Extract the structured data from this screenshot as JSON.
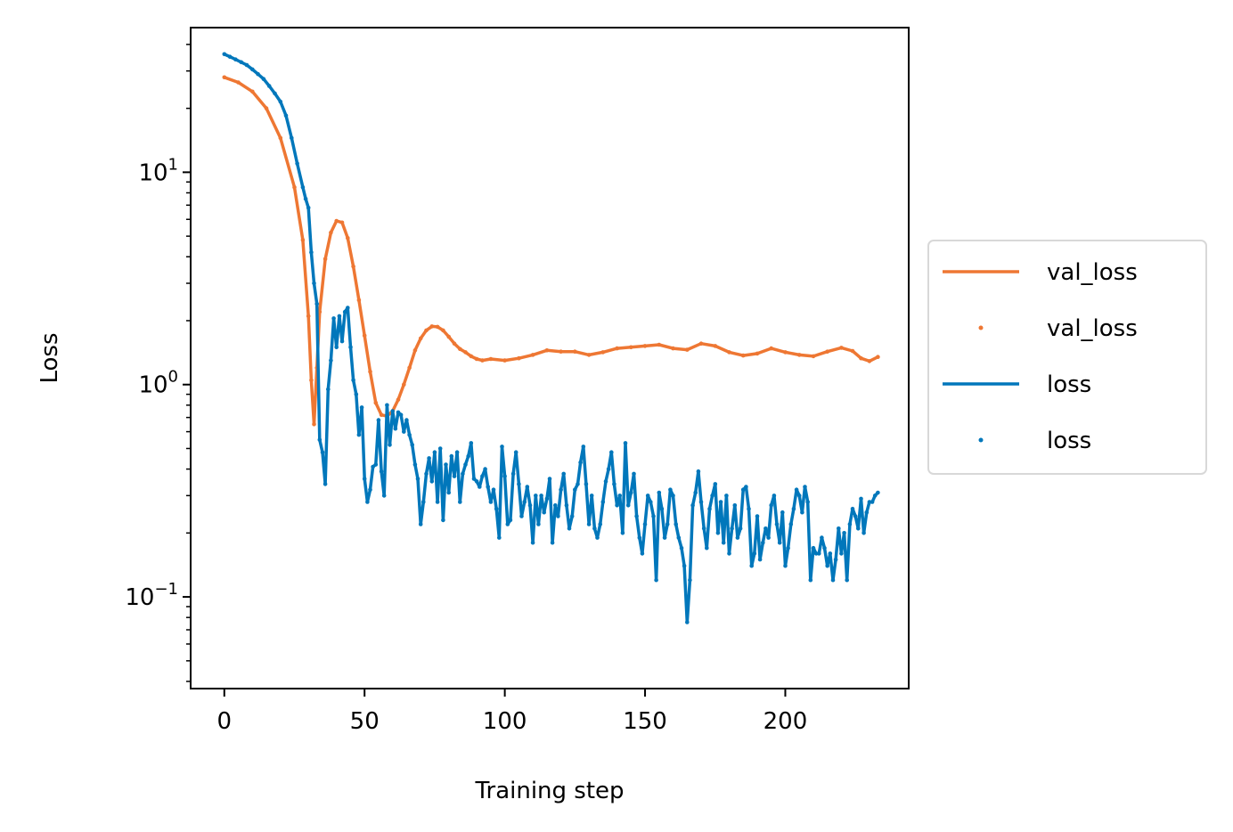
{
  "chart_data": {
    "type": "line",
    "xlabel": "Training step",
    "ylabel": "Loss",
    "xlim": [
      -12,
      244
    ],
    "ylim": [
      0.037,
      48
    ],
    "y_scale": "log",
    "grid": false,
    "legend_placement": "right, outside plot",
    "x_ticks": [
      0,
      50,
      100,
      150,
      200
    ],
    "x_tick_labels": [
      "0",
      "50",
      "100",
      "150",
      "200"
    ],
    "y_ticks": [
      0.1,
      1,
      10
    ],
    "y_tick_labels": [
      {
        "base": "10",
        "exp": "−1"
      },
      {
        "base": "10",
        "exp": "0"
      },
      {
        "base": "10",
        "exp": "1"
      }
    ],
    "legend": [
      {
        "label": "val_loss",
        "style": "line",
        "color": "#ee7733"
      },
      {
        "label": "val_loss",
        "style": "marker",
        "color": "#ee7733"
      },
      {
        "label": "loss",
        "style": "line",
        "color": "#0077bb"
      },
      {
        "label": "loss",
        "style": "marker",
        "color": "#0077bb"
      }
    ],
    "series": [
      {
        "name": "val_loss",
        "color": "#ee7733",
        "points": [
          [
            0,
            28
          ],
          [
            5,
            26.5
          ],
          [
            10,
            24
          ],
          [
            15,
            20
          ],
          [
            20,
            14.5
          ],
          [
            25,
            8.5
          ],
          [
            28,
            4.8
          ],
          [
            30,
            2.1
          ],
          [
            31,
            1.05
          ],
          [
            32,
            0.65
          ],
          [
            33,
            1.2
          ],
          [
            34,
            2.2
          ],
          [
            36,
            3.9
          ],
          [
            38,
            5.2
          ],
          [
            40,
            5.9
          ],
          [
            42,
            5.8
          ],
          [
            44,
            4.9
          ],
          [
            46,
            3.6
          ],
          [
            48,
            2.5
          ],
          [
            50,
            1.7
          ],
          [
            52,
            1.15
          ],
          [
            54,
            0.82
          ],
          [
            56,
            0.72
          ],
          [
            58,
            0.71
          ],
          [
            60,
            0.75
          ],
          [
            62,
            0.85
          ],
          [
            64,
            1.0
          ],
          [
            66,
            1.2
          ],
          [
            68,
            1.45
          ],
          [
            70,
            1.65
          ],
          [
            72,
            1.8
          ],
          [
            74,
            1.88
          ],
          [
            76,
            1.87
          ],
          [
            78,
            1.8
          ],
          [
            80,
            1.68
          ],
          [
            82,
            1.56
          ],
          [
            84,
            1.47
          ],
          [
            86,
            1.42
          ],
          [
            88,
            1.36
          ],
          [
            90,
            1.32
          ],
          [
            92,
            1.3
          ],
          [
            95,
            1.32
          ],
          [
            100,
            1.3
          ],
          [
            105,
            1.33
          ],
          [
            110,
            1.38
          ],
          [
            115,
            1.45
          ],
          [
            120,
            1.43
          ],
          [
            125,
            1.43
          ],
          [
            130,
            1.38
          ],
          [
            135,
            1.42
          ],
          [
            140,
            1.48
          ],
          [
            145,
            1.5
          ],
          [
            150,
            1.52
          ],
          [
            155,
            1.54
          ],
          [
            160,
            1.48
          ],
          [
            165,
            1.46
          ],
          [
            170,
            1.56
          ],
          [
            175,
            1.52
          ],
          [
            180,
            1.42
          ],
          [
            185,
            1.37
          ],
          [
            190,
            1.4
          ],
          [
            195,
            1.48
          ],
          [
            200,
            1.42
          ],
          [
            205,
            1.38
          ],
          [
            210,
            1.36
          ],
          [
            215,
            1.43
          ],
          [
            220,
            1.49
          ],
          [
            224,
            1.44
          ],
          [
            227,
            1.33
          ],
          [
            230,
            1.29
          ],
          [
            233,
            1.35
          ]
        ]
      },
      {
        "name": "loss",
        "color": "#0077bb",
        "points": [
          [
            0,
            36
          ],
          [
            2,
            35
          ],
          [
            4,
            34
          ],
          [
            6,
            33
          ],
          [
            8,
            32
          ],
          [
            10,
            30.5
          ],
          [
            12,
            29
          ],
          [
            14,
            27.5
          ],
          [
            16,
            25.5
          ],
          [
            18,
            23.5
          ],
          [
            20,
            21.5
          ],
          [
            22,
            18.5
          ],
          [
            24,
            14.5
          ],
          [
            26,
            11
          ],
          [
            28,
            8.5
          ],
          [
            29,
            7.5
          ],
          [
            30,
            6.8
          ],
          [
            31,
            4.2
          ],
          [
            32,
            3
          ],
          [
            33,
            2.4
          ],
          [
            34,
            0.55
          ],
          [
            35,
            0.48
          ],
          [
            36,
            0.34
          ],
          [
            37,
            0.95
          ],
          [
            38,
            1.3
          ],
          [
            39,
            2.05
          ],
          [
            40,
            1.5
          ],
          [
            41,
            2.1
          ],
          [
            42,
            1.6
          ],
          [
            43,
            2.2
          ],
          [
            44,
            2.3
          ],
          [
            45,
            1.5
          ],
          [
            46,
            1.05
          ],
          [
            47,
            0.9
          ],
          [
            48,
            0.58
          ],
          [
            49,
            0.78
          ],
          [
            50,
            0.36
          ],
          [
            51,
            0.28
          ],
          [
            52,
            0.32
          ],
          [
            53,
            0.41
          ],
          [
            54,
            0.42
          ],
          [
            55,
            0.68
          ],
          [
            56,
            0.39
          ],
          [
            57,
            0.3
          ],
          [
            58,
            0.8
          ],
          [
            59,
            0.52
          ],
          [
            60,
            0.75
          ],
          [
            61,
            0.62
          ],
          [
            62,
            0.74
          ],
          [
            63,
            0.72
          ],
          [
            64,
            0.6
          ],
          [
            65,
            0.68
          ],
          [
            66,
            0.58
          ],
          [
            67,
            0.52
          ],
          [
            68,
            0.42
          ],
          [
            69,
            0.36
          ],
          [
            70,
            0.22
          ],
          [
            71,
            0.28
          ],
          [
            72,
            0.38
          ],
          [
            73,
            0.45
          ],
          [
            74,
            0.35
          ],
          [
            75,
            0.48
          ],
          [
            76,
            0.28
          ],
          [
            77,
            0.5
          ],
          [
            78,
            0.23
          ],
          [
            79,
            0.42
          ],
          [
            80,
            0.31
          ],
          [
            81,
            0.46
          ],
          [
            82,
            0.37
          ],
          [
            83,
            0.48
          ],
          [
            84,
            0.28
          ],
          [
            85,
            0.38
          ],
          [
            86,
            0.42
          ],
          [
            87,
            0.46
          ],
          [
            88,
            0.53
          ],
          [
            89,
            0.36
          ],
          [
            90,
            0.35
          ],
          [
            91,
            0.33
          ],
          [
            92,
            0.37
          ],
          [
            93,
            0.4
          ],
          [
            94,
            0.33
          ],
          [
            95,
            0.28
          ],
          [
            96,
            0.32
          ],
          [
            97,
            0.26
          ],
          [
            98,
            0.19
          ],
          [
            99,
            0.51
          ],
          [
            100,
            0.37
          ],
          [
            101,
            0.22
          ],
          [
            102,
            0.23
          ],
          [
            103,
            0.38
          ],
          [
            104,
            0.48
          ],
          [
            105,
            0.34
          ],
          [
            106,
            0.24
          ],
          [
            107,
            0.28
          ],
          [
            108,
            0.33
          ],
          [
            109,
            0.27
          ],
          [
            110,
            0.18
          ],
          [
            111,
            0.3
          ],
          [
            112,
            0.22
          ],
          [
            113,
            0.3
          ],
          [
            114,
            0.25
          ],
          [
            115,
            0.29
          ],
          [
            116,
            0.36
          ],
          [
            117,
            0.18
          ],
          [
            118,
            0.27
          ],
          [
            119,
            0.24
          ],
          [
            120,
            0.32
          ],
          [
            121,
            0.38
          ],
          [
            122,
            0.27
          ],
          [
            123,
            0.21
          ],
          [
            124,
            0.24
          ],
          [
            125,
            0.32
          ],
          [
            126,
            0.34
          ],
          [
            127,
            0.43
          ],
          [
            128,
            0.51
          ],
          [
            129,
            0.34
          ],
          [
            130,
            0.22
          ],
          [
            131,
            0.3
          ],
          [
            132,
            0.21
          ],
          [
            133,
            0.19
          ],
          [
            134,
            0.22
          ],
          [
            135,
            0.28
          ],
          [
            136,
            0.35
          ],
          [
            137,
            0.4
          ],
          [
            138,
            0.48
          ],
          [
            139,
            0.34
          ],
          [
            140,
            0.27
          ],
          [
            141,
            0.3
          ],
          [
            142,
            0.2
          ],
          [
            143,
            0.53
          ],
          [
            144,
            0.27
          ],
          [
            145,
            0.31
          ],
          [
            146,
            0.38
          ],
          [
            147,
            0.24
          ],
          [
            148,
            0.19
          ],
          [
            149,
            0.16
          ],
          [
            150,
            0.22
          ],
          [
            151,
            0.3
          ],
          [
            152,
            0.28
          ],
          [
            153,
            0.24
          ],
          [
            154,
            0.12
          ],
          [
            155,
            0.31
          ],
          [
            156,
            0.26
          ],
          [
            157,
            0.19
          ],
          [
            158,
            0.22
          ],
          [
            159,
            0.32
          ],
          [
            160,
            0.3
          ],
          [
            161,
            0.22
          ],
          [
            162,
            0.19
          ],
          [
            163,
            0.17
          ],
          [
            164,
            0.14
          ],
          [
            165,
            0.076
          ],
          [
            166,
            0.12
          ],
          [
            167,
            0.27
          ],
          [
            168,
            0.31
          ],
          [
            169,
            0.39
          ],
          [
            170,
            0.28
          ],
          [
            171,
            0.21
          ],
          [
            172,
            0.17
          ],
          [
            173,
            0.26
          ],
          [
            174,
            0.3
          ],
          [
            175,
            0.34
          ],
          [
            176,
            0.2
          ],
          [
            177,
            0.28
          ],
          [
            178,
            0.18
          ],
          [
            179,
            0.3
          ],
          [
            180,
            0.16
          ],
          [
            181,
            0.21
          ],
          [
            182,
            0.27
          ],
          [
            183,
            0.19
          ],
          [
            184,
            0.21
          ],
          [
            185,
            0.32
          ],
          [
            186,
            0.33
          ],
          [
            187,
            0.26
          ],
          [
            188,
            0.14
          ],
          [
            189,
            0.16
          ],
          [
            190,
            0.24
          ],
          [
            191,
            0.15
          ],
          [
            192,
            0.18
          ],
          [
            193,
            0.21
          ],
          [
            194,
            0.19
          ],
          [
            195,
            0.27
          ],
          [
            196,
            0.3
          ],
          [
            197,
            0.22
          ],
          [
            198,
            0.18
          ],
          [
            199,
            0.25
          ],
          [
            200,
            0.14
          ],
          [
            201,
            0.17
          ],
          [
            202,
            0.22
          ],
          [
            203,
            0.26
          ],
          [
            204,
            0.32
          ],
          [
            205,
            0.3
          ],
          [
            206,
            0.25
          ],
          [
            207,
            0.33
          ],
          [
            208,
            0.28
          ],
          [
            209,
            0.12
          ],
          [
            210,
            0.17
          ],
          [
            211,
            0.16
          ],
          [
            212,
            0.16
          ],
          [
            213,
            0.19
          ],
          [
            214,
            0.17
          ],
          [
            215,
            0.14
          ],
          [
            216,
            0.16
          ],
          [
            217,
            0.12
          ],
          [
            218,
            0.15
          ],
          [
            219,
            0.21
          ],
          [
            220,
            0.16
          ],
          [
            221,
            0.2
          ],
          [
            222,
            0.12
          ],
          [
            223,
            0.22
          ],
          [
            224,
            0.26
          ],
          [
            225,
            0.24
          ],
          [
            226,
            0.21
          ],
          [
            227,
            0.29
          ],
          [
            228,
            0.2
          ],
          [
            229,
            0.25
          ],
          [
            230,
            0.28
          ],
          [
            231,
            0.28
          ],
          [
            232,
            0.3
          ],
          [
            233,
            0.31
          ]
        ]
      }
    ]
  }
}
